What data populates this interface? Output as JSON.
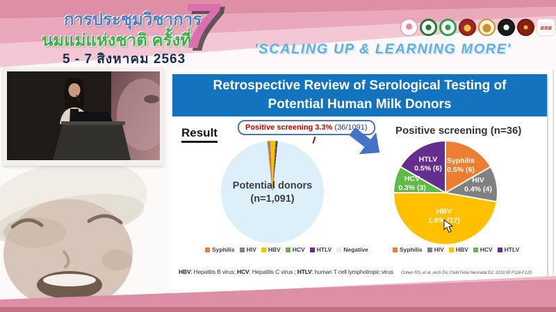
{
  "banner": {
    "conference_title_line1": "การประชุมวิชาการ",
    "conference_title_line2": "นมแม่แห่งชาติ ครั้งที่",
    "edition_number": "7",
    "dates": "5 - 7 สิงหาคม 2563",
    "slogan": "'SCALING UP & LEARNING MORE'",
    "colors": {
      "stripe_dark": "#DE8FA6",
      "stripe_mid": "#E9A8BB",
      "stripe_light": "#F3C8D4",
      "title_blue": "#4A7CC3",
      "title_green": "#3BAE49",
      "edition_pink": "#DC6FAF",
      "slogan_blue": "#5FB1DD"
    },
    "logos": [
      {
        "name": "breastfeeding-foundation-logo"
      },
      {
        "name": "department-of-health-logo"
      },
      {
        "name": "medical-council-logo"
      },
      {
        "name": "university-emblem-logo"
      },
      {
        "name": "royal-college-emblem-logo"
      },
      {
        "name": "pediatric-association-logo"
      },
      {
        "name": "ministry-emblem-logo"
      },
      {
        "name": "thai-health-promotion-logo",
        "text": "สสส"
      }
    ]
  },
  "slide": {
    "title": "Retrospective Review of Serological Testing of Potential Human Milk Donors",
    "title_bar_color": "#1373BF",
    "result_label": "Result",
    "footnote_parts": [
      "HBV",
      ": Hepatitis B virus; ",
      "HCV",
      ": Hepatitis C virus ; ",
      "HTLV",
      ": human T cell lymphotropic virus"
    ],
    "citation": "Cohen RS, et al. Arch Dis Child Fetal Neonatal Ed. 2010;95:F118-F120."
  },
  "chart_data": [
    {
      "type": "pie",
      "center_label_line1": "Potential donors",
      "center_label_line2": "(n=1,091)",
      "total": 1091,
      "annotation": {
        "highlight": "Positive screening 3.3%",
        "detail": "(36/1091)"
      },
      "slices": [
        {
          "label": "Syphilis",
          "value": 6,
          "color": "#ED7D31"
        },
        {
          "label": "HIV",
          "value": 4,
          "color": "#808080"
        },
        {
          "label": "HBV",
          "value": 17,
          "color": "#FFC000"
        },
        {
          "label": "HCV",
          "value": 3,
          "color": "#5FBB46"
        },
        {
          "label": "HTLV",
          "value": 6,
          "color": "#662D91"
        },
        {
          "label": "Negative",
          "value": 1055,
          "color": "#DDF0FA"
        }
      ],
      "legend_position": "bottom"
    },
    {
      "type": "pie",
      "title": "Positive screening (n=36)",
      "total": 36,
      "slices": [
        {
          "label": "Syphilis",
          "value": 6,
          "pct_label": "0.5% (6)",
          "color": "#ED7D31"
        },
        {
          "label": "HIV",
          "value": 4,
          "pct_label": "0.4% (4)",
          "color": "#808080"
        },
        {
          "label": "HBV",
          "value": 17,
          "pct_label": "1.6% (17)",
          "color": "#FFC000"
        },
        {
          "label": "HCV",
          "value": 3,
          "pct_label": "0.3% (3)",
          "color": "#5FBB46"
        },
        {
          "label": "HTLV",
          "value": 6,
          "pct_label": "0.5% (6)",
          "color": "#662D91"
        }
      ],
      "legend_position": "bottom"
    }
  ]
}
